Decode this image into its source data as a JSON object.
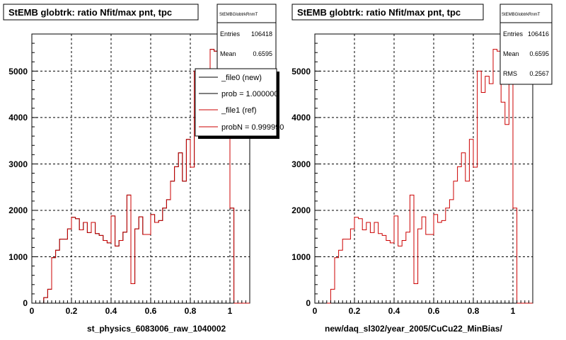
{
  "chart_data": [
    {
      "type": "histogram",
      "title": "StEMB globtrk: ratio Nfit/max pnt, tpc",
      "xlabel": "st_physics_6083006_raw_1040002",
      "ylabel": "",
      "xlim": [
        0,
        1.1
      ],
      "ylim": [
        0,
        5800
      ],
      "x_ticks": [
        "0",
        "0.2",
        "0.4",
        "0.6",
        "0.8",
        "1"
      ],
      "y_ticks": [
        "0",
        "1000",
        "2000",
        "3000",
        "4000",
        "5000"
      ],
      "grid": true,
      "stats": {
        "title": "StEMBGlobtrkRnmT",
        "rows": [
          {
            "label": "Entries",
            "value": "106418"
          },
          {
            "label": "Mean",
            "value": "0.6595"
          }
        ]
      },
      "legend": {
        "position": "top-right",
        "entries": [
          {
            "label": "_file0 (new)",
            "color": "#000000"
          },
          {
            "label": "prob = 1.000000",
            "color": "#000000"
          },
          {
            "label": "_file1 (ref)",
            "color": "#cc0000"
          },
          {
            "label": "probN = 0.999990",
            "color": "#cc0000"
          }
        ]
      },
      "bin_edges_start": 0.06,
      "bin_width": 0.02,
      "series": [
        {
          "name": "_file0 (new)",
          "color": "#000000",
          "values": [
            120,
            300,
            980,
            1140,
            1380,
            1380,
            1600,
            1850,
            1820,
            1580,
            1740,
            1520,
            1740,
            1500,
            1460,
            1350,
            1300,
            1880,
            1230,
            1350,
            1530,
            2330,
            420,
            1600,
            1860,
            1480,
            1480,
            1910,
            1740,
            1780,
            2050,
            2230,
            2630,
            2940,
            3240,
            2630,
            3530,
            2930,
            5000,
            4540,
            4890,
            4730,
            5470,
            5430,
            4330,
            3850,
            5100,
            2050,
            0,
            0,
            0,
            0
          ]
        },
        {
          "name": "_file1 (ref)",
          "color": "#cc0000",
          "values": [
            120,
            300,
            980,
            1140,
            1380,
            1380,
            1600,
            1850,
            1820,
            1580,
            1740,
            1520,
            1740,
            1500,
            1460,
            1350,
            1300,
            1880,
            1230,
            1350,
            1530,
            2330,
            420,
            1600,
            1860,
            1480,
            1480,
            1910,
            1740,
            1780,
            2050,
            2230,
            2630,
            2940,
            3240,
            2630,
            3530,
            2930,
            5000,
            4540,
            4890,
            4730,
            5470,
            5430,
            4330,
            3850,
            5100,
            2050,
            0,
            0,
            0,
            0
          ]
        }
      ]
    },
    {
      "type": "histogram",
      "title": "StEMB globtrk: ratio Nfit/max pnt, tpc",
      "xlabel": "new/daq_sl302/year_2005/CuCu22_MinBias/",
      "ylabel": "",
      "xlim": [
        0,
        1.1
      ],
      "ylim": [
        0,
        5800
      ],
      "x_ticks": [
        "0",
        "0.2",
        "0.4",
        "0.6",
        "0.8",
        "1"
      ],
      "y_ticks": [
        "0",
        "1000",
        "2000",
        "3000",
        "4000",
        "5000"
      ],
      "grid": true,
      "stats": {
        "title": "StEMBGlobtrkRnmT",
        "rows": [
          {
            "label": "Entries",
            "value": "106416"
          },
          {
            "label": "Mean",
            "value": "0.6595"
          },
          {
            "label": "RMS",
            "value": "0.2567"
          }
        ]
      },
      "bin_edges_start": 0.06,
      "bin_width": 0.02,
      "series": [
        {
          "name": "",
          "color": "#cc0000",
          "values": [
            0,
            300,
            980,
            1140,
            1380,
            1380,
            1600,
            1850,
            1820,
            1580,
            1740,
            1520,
            1740,
            1500,
            1460,
            1350,
            1300,
            1880,
            1230,
            1350,
            1530,
            2330,
            420,
            1600,
            1860,
            1480,
            1480,
            1910,
            1740,
            1780,
            2050,
            2230,
            2630,
            2940,
            3240,
            2630,
            3530,
            2930,
            5000,
            4540,
            4890,
            4730,
            5470,
            5430,
            4330,
            3850,
            5100,
            2050,
            0,
            0,
            0,
            0
          ]
        }
      ]
    }
  ]
}
